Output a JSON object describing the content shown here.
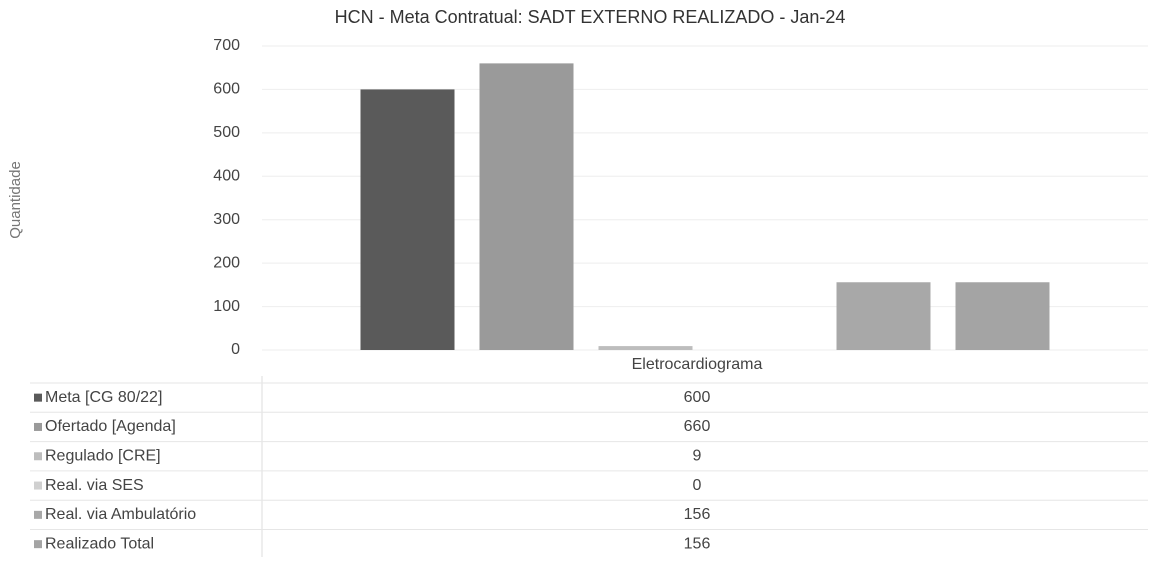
{
  "chart_data": {
    "type": "bar",
    "title": "HCN - Meta Contratual: SADT EXTERNO REALIZADO - Jan-24",
    "y_label": "Quantidade",
    "categories": [
      "Eletrocardiograma"
    ],
    "series": [
      {
        "name": "Meta [CG 80/22]",
        "color": "#5a5a5a",
        "values": [
          600
        ]
      },
      {
        "name": "Ofertado [Agenda]",
        "color": "#9a9a9a",
        "values": [
          660
        ]
      },
      {
        "name": "Regulado [CRE]",
        "color": "#bdbdbd",
        "values": [
          9
        ]
      },
      {
        "name": "Real. via SES",
        "color": "#d0d0d0",
        "values": [
          0
        ]
      },
      {
        "name": "Real. via Ambulatório",
        "color": "#a8a8a8",
        "values": [
          156
        ]
      },
      {
        "name": "Realizado Total",
        "color": "#a4a4a4",
        "values": [
          156
        ]
      }
    ],
    "ylim": [
      0,
      700
    ],
    "yticks": [
      0,
      100,
      200,
      300,
      400,
      500,
      600,
      700
    ],
    "grid": true
  }
}
